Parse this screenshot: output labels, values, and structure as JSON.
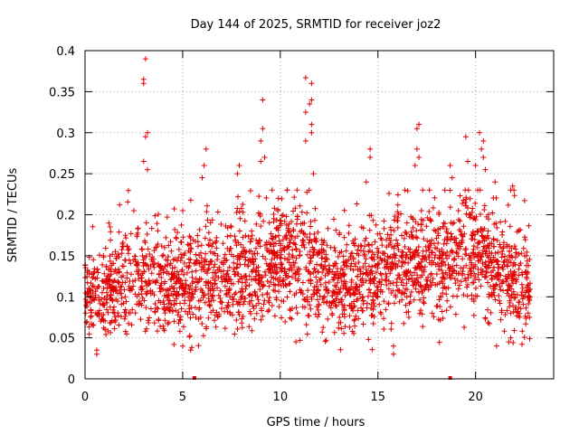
{
  "chart_data": {
    "type": "scatter",
    "title": "Day 144 of 2025, SRMTID for receiver joz2",
    "xlabel": "GPS time / hours",
    "ylabel": "SRMTID / TECUs",
    "xlim": [
      0,
      24
    ],
    "ylim": [
      0,
      0.4
    ],
    "x_ticks": [
      0,
      5,
      10,
      15,
      20
    ],
    "x_tick_labels": [
      "0",
      "5",
      "10",
      "15",
      "20"
    ],
    "y_ticks": [
      0,
      0.05,
      0.1,
      0.15,
      0.2,
      0.25,
      0.3,
      0.35,
      0.4
    ],
    "y_tick_labels": [
      "0",
      "0.05",
      "0.1",
      "0.15",
      "0.2",
      "0.25",
      "0.3",
      "0.35",
      "0.4"
    ],
    "grid": true,
    "marker": "+",
    "marker_color": "#e00000",
    "point_count_approx": 2600,
    "trend": [
      {
        "x": 0.0,
        "median": 0.1,
        "spread": 0.03
      },
      {
        "x": 1.0,
        "median": 0.105,
        "spread": 0.03
      },
      {
        "x": 2.0,
        "median": 0.115,
        "spread": 0.035
      },
      {
        "x": 3.0,
        "median": 0.12,
        "spread": 0.04
      },
      {
        "x": 4.0,
        "median": 0.11,
        "spread": 0.035
      },
      {
        "x": 5.0,
        "median": 0.11,
        "spread": 0.035
      },
      {
        "x": 6.0,
        "median": 0.12,
        "spread": 0.04
      },
      {
        "x": 7.0,
        "median": 0.125,
        "spread": 0.04
      },
      {
        "x": 8.0,
        "median": 0.125,
        "spread": 0.04
      },
      {
        "x": 9.0,
        "median": 0.13,
        "spread": 0.04
      },
      {
        "x": 10.0,
        "median": 0.15,
        "spread": 0.04
      },
      {
        "x": 11.0,
        "median": 0.14,
        "spread": 0.045
      },
      {
        "x": 12.0,
        "median": 0.12,
        "spread": 0.04
      },
      {
        "x": 13.0,
        "median": 0.11,
        "spread": 0.035
      },
      {
        "x": 14.0,
        "median": 0.12,
        "spread": 0.04
      },
      {
        "x": 15.0,
        "median": 0.13,
        "spread": 0.04
      },
      {
        "x": 16.0,
        "median": 0.14,
        "spread": 0.04
      },
      {
        "x": 17.0,
        "median": 0.14,
        "spread": 0.04
      },
      {
        "x": 18.0,
        "median": 0.135,
        "spread": 0.04
      },
      {
        "x": 19.0,
        "median": 0.15,
        "spread": 0.04
      },
      {
        "x": 20.0,
        "median": 0.16,
        "spread": 0.045
      },
      {
        "x": 21.0,
        "median": 0.13,
        "spread": 0.04
      },
      {
        "x": 22.0,
        "median": 0.12,
        "spread": 0.04
      },
      {
        "x": 22.8,
        "median": 0.12,
        "spread": 0.035
      }
    ],
    "outliers": [
      {
        "x": 3.1,
        "y": 0.39
      },
      {
        "x": 3.0,
        "y": 0.365
      },
      {
        "x": 3.0,
        "y": 0.36
      },
      {
        "x": 3.2,
        "y": 0.3
      },
      {
        "x": 3.1,
        "y": 0.295
      },
      {
        "x": 3.0,
        "y": 0.265
      },
      {
        "x": 3.2,
        "y": 0.255
      },
      {
        "x": 2.5,
        "y": 0.205
      },
      {
        "x": 5.0,
        "y": 0.205
      },
      {
        "x": 6.1,
        "y": 0.26
      },
      {
        "x": 6.2,
        "y": 0.28
      },
      {
        "x": 6.0,
        "y": 0.245
      },
      {
        "x": 7.8,
        "y": 0.25
      },
      {
        "x": 7.9,
        "y": 0.26
      },
      {
        "x": 9.1,
        "y": 0.34
      },
      {
        "x": 9.1,
        "y": 0.305
      },
      {
        "x": 9.0,
        "y": 0.29
      },
      {
        "x": 9.2,
        "y": 0.27
      },
      {
        "x": 9.0,
        "y": 0.265
      },
      {
        "x": 9.9,
        "y": 0.22
      },
      {
        "x": 11.3,
        "y": 0.367
      },
      {
        "x": 11.6,
        "y": 0.36
      },
      {
        "x": 11.6,
        "y": 0.34
      },
      {
        "x": 11.5,
        "y": 0.335
      },
      {
        "x": 11.3,
        "y": 0.325
      },
      {
        "x": 11.6,
        "y": 0.31
      },
      {
        "x": 11.6,
        "y": 0.3
      },
      {
        "x": 11.3,
        "y": 0.29
      },
      {
        "x": 11.7,
        "y": 0.25
      },
      {
        "x": 14.6,
        "y": 0.28
      },
      {
        "x": 14.6,
        "y": 0.27
      },
      {
        "x": 14.4,
        "y": 0.24
      },
      {
        "x": 17.1,
        "y": 0.31
      },
      {
        "x": 17.0,
        "y": 0.305
      },
      {
        "x": 17.0,
        "y": 0.28
      },
      {
        "x": 17.1,
        "y": 0.27
      },
      {
        "x": 16.9,
        "y": 0.26
      },
      {
        "x": 18.7,
        "y": 0.26
      },
      {
        "x": 18.8,
        "y": 0.245
      },
      {
        "x": 19.5,
        "y": 0.295
      },
      {
        "x": 20.2,
        "y": 0.3
      },
      {
        "x": 20.4,
        "y": 0.29
      },
      {
        "x": 20.3,
        "y": 0.28
      },
      {
        "x": 20.4,
        "y": 0.27
      },
      {
        "x": 19.6,
        "y": 0.265
      },
      {
        "x": 20.0,
        "y": 0.26
      },
      {
        "x": 20.5,
        "y": 0.255
      },
      {
        "x": 21.0,
        "y": 0.24
      },
      {
        "x": 21.9,
        "y": 0.235
      },
      {
        "x": 21.8,
        "y": 0.23
      },
      {
        "x": 0.6,
        "y": 0.035
      },
      {
        "x": 0.6,
        "y": 0.03
      },
      {
        "x": 5.0,
        "y": 0.04
      },
      {
        "x": 10.8,
        "y": 0.045
      },
      {
        "x": 15.8,
        "y": 0.04
      },
      {
        "x": 15.8,
        "y": 0.03
      },
      {
        "x": 21.7,
        "y": 0.045
      },
      {
        "x": 21.8,
        "y": 0.05
      }
    ],
    "zero_markers": [
      5.6,
      18.7
    ]
  }
}
